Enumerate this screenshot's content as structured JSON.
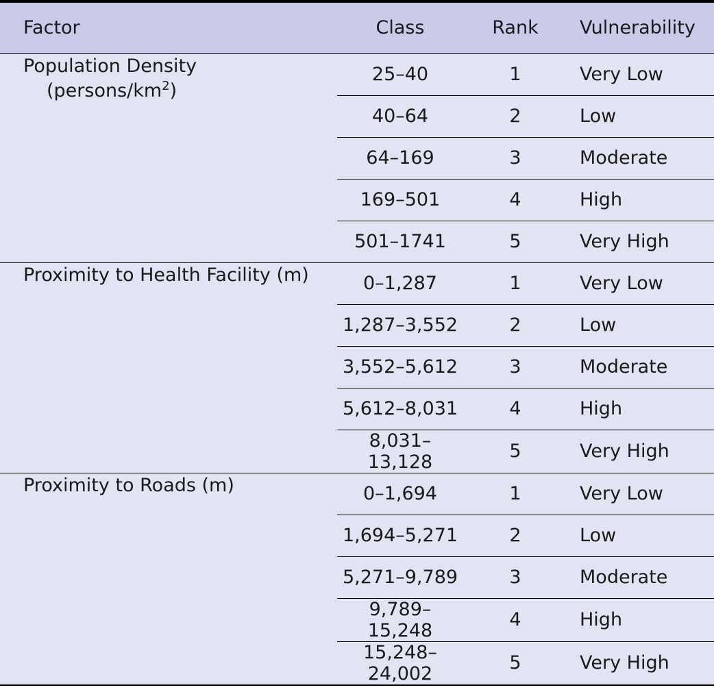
{
  "header": {
    "factor": "Factor",
    "class": "Class",
    "rank": "Rank",
    "vulnerability": "Vulnerability"
  },
  "groups": [
    {
      "factor": "Population Density",
      "unit_prefix": "(persons/km",
      "unit_sup": "2",
      "unit_suffix": ")",
      "rows": [
        {
          "class": "25–40",
          "rank": "1",
          "vulnerability": "Very Low"
        },
        {
          "class": "40–64",
          "rank": "2",
          "vulnerability": "Low"
        },
        {
          "class": "64–169",
          "rank": "3",
          "vulnerability": "Moderate"
        },
        {
          "class": "169–501",
          "rank": "4",
          "vulnerability": "High"
        },
        {
          "class": "501–1741",
          "rank": "5",
          "vulnerability": "Very High"
        }
      ]
    },
    {
      "factor": "Proximity to Health Facility (m)",
      "rows": [
        {
          "class": "0–1,287",
          "rank": "1",
          "vulnerability": "Very Low"
        },
        {
          "class": "1,287–3,552",
          "rank": "2",
          "vulnerability": "Low"
        },
        {
          "class": "3,552–5,612",
          "rank": "3",
          "vulnerability": "Moderate"
        },
        {
          "class": "5,612–8,031",
          "rank": "4",
          "vulnerability": "High"
        },
        {
          "class": "8,031–13,128",
          "rank": "5",
          "vulnerability": "Very High"
        }
      ]
    },
    {
      "factor": "Proximity to Roads (m)",
      "rows": [
        {
          "class": "0–1,694",
          "rank": "1",
          "vulnerability": "Very Low"
        },
        {
          "class": "1,694–5,271",
          "rank": "2",
          "vulnerability": "Low"
        },
        {
          "class": "5,271–9,789",
          "rank": "3",
          "vulnerability": "Moderate"
        },
        {
          "class": "9,789–15,248",
          "rank": "4",
          "vulnerability": "High"
        },
        {
          "class": "15,248–24,002",
          "rank": "5",
          "vulnerability": "Very High"
        }
      ]
    }
  ]
}
